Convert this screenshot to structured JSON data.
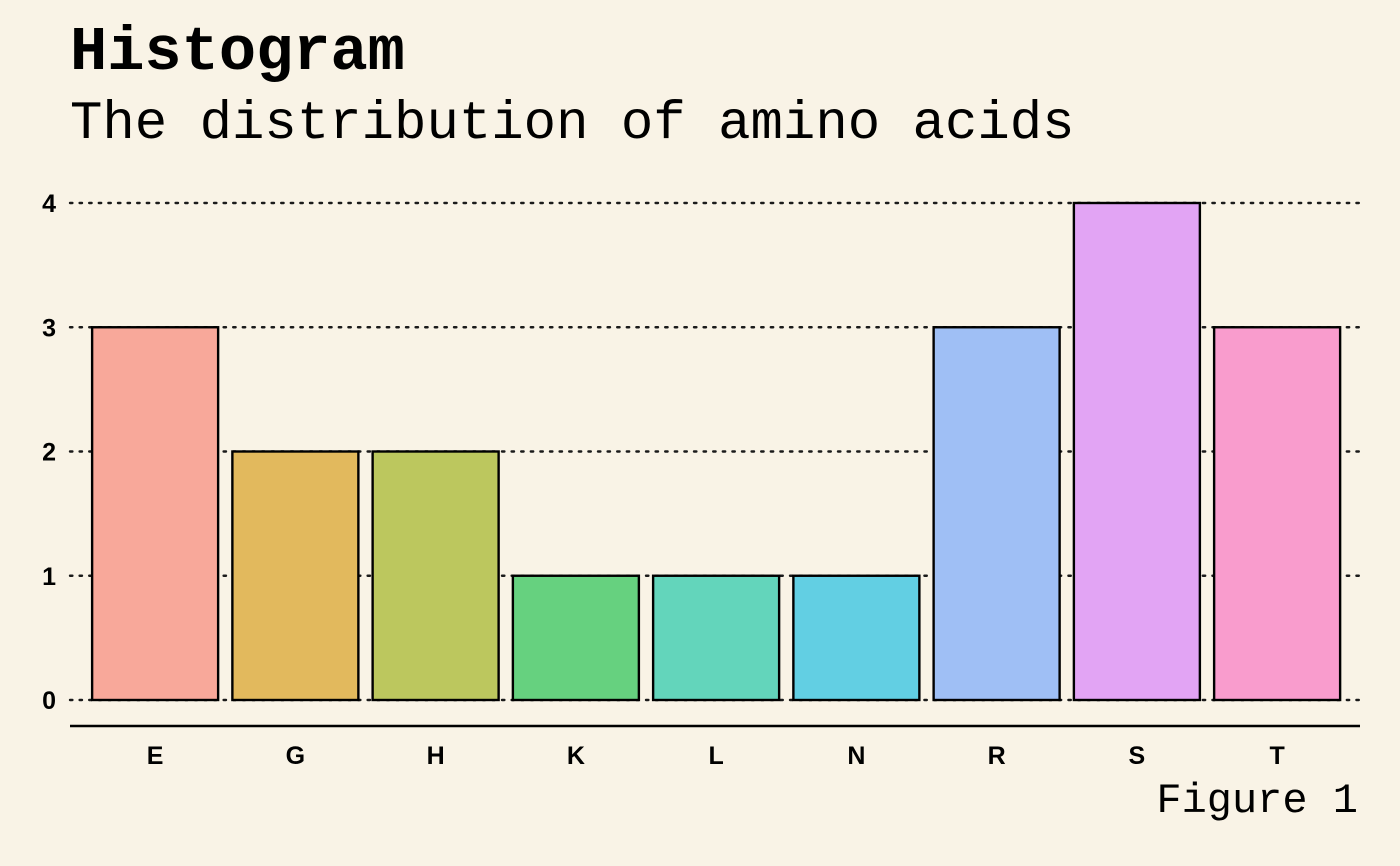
{
  "chart_data": {
    "type": "bar",
    "title": "Histogram",
    "subtitle": "The distribution of amino acids",
    "caption": "Figure 1",
    "xlabel": "",
    "ylabel": "",
    "categories": [
      "E",
      "G",
      "H",
      "K",
      "L",
      "N",
      "R",
      "S",
      "T"
    ],
    "values": [
      3,
      2,
      2,
      1,
      1,
      1,
      3,
      4,
      3
    ],
    "colors": [
      "#f8a89a",
      "#e2b95d",
      "#bcc75e",
      "#66d17f",
      "#63d5bb",
      "#62cfe3",
      "#9fbff5",
      "#e2a4f4",
      "#f99ccd"
    ],
    "ylim": [
      0,
      4
    ],
    "yticks": [
      0,
      1,
      2,
      3,
      4
    ],
    "grid": "horizontal-dotted",
    "legend": "none"
  }
}
